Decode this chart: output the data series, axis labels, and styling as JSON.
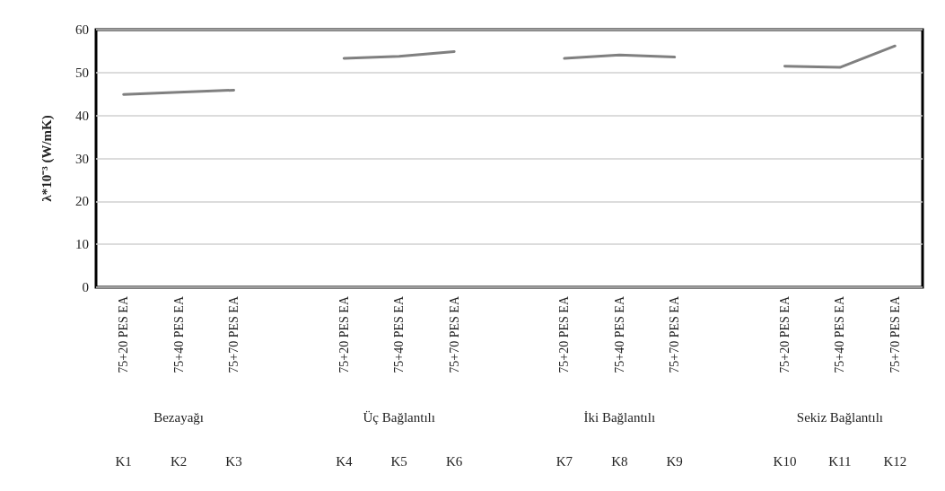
{
  "chart_data": {
    "type": "line",
    "ylabel": "λ*10⁻³ (W/mK)",
    "categories": [
      "75+20 PES EA",
      "75+40 PES EA",
      "75+70 PES EA",
      null,
      "75+20 PES EA",
      "75+40 PES EA",
      "75+70 PES EA",
      null,
      "75+20 PES EA",
      "75+40 PES EA",
      "75+70 PES EA",
      null,
      "75+20 PES EA",
      "75+40 PES EA",
      "75+70 PES EA"
    ],
    "series": [
      {
        "color": "#808080",
        "values": [
          44.9,
          45.4,
          45.9,
          null,
          53.3,
          53.8,
          54.9,
          null,
          53.3,
          54.1,
          53.6,
          null,
          51.5,
          51.2,
          56.2
        ]
      }
    ],
    "ylim": [
      0,
      60
    ],
    "yticks": [
      0,
      10,
      20,
      30,
      40,
      50,
      60
    ],
    "grid": "y",
    "marker": "none",
    "line_style": "solid",
    "annotations": [
      "Bezayağı",
      "Üç Bağlantılı",
      "İki Bağlantılı",
      "Sekiz Bağlantılı",
      "K1",
      "K2",
      "K3",
      "K4",
      "K5",
      "K6",
      "K7",
      "K8",
      "K9",
      "K10",
      "K11",
      "K12"
    ]
  }
}
